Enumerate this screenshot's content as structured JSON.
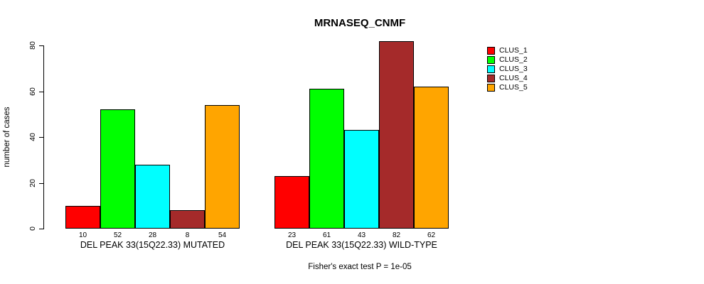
{
  "chart_data": {
    "type": "bar",
    "title": "MRNASEQ_CNMF",
    "ylabel": "number of cases",
    "ylim": [
      0,
      80
    ],
    "yticks": [
      "0",
      "20",
      "40",
      "60",
      "80"
    ],
    "grid": false,
    "legend_position": "right-outside",
    "categories": [
      "DEL PEAK 33(15Q22.33) MUTATED",
      "DEL PEAK 33(15Q22.33) WILD-TYPE"
    ],
    "series": [
      {
        "name": "CLUS_1",
        "color": "#ff0000",
        "values": [
          10,
          23
        ]
      },
      {
        "name": "CLUS_2",
        "color": "#00ff00",
        "values": [
          52,
          61
        ]
      },
      {
        "name": "CLUS_3",
        "color": "#00ffff",
        "values": [
          28,
          43
        ]
      },
      {
        "name": "CLUS_4",
        "color": "#a52a2a",
        "values": [
          8,
          82
        ]
      },
      {
        "name": "CLUS_5",
        "color": "#ffa500",
        "values": [
          54,
          62
        ]
      }
    ],
    "value_labels_shown": true,
    "footnote": "Fisher's exact test P = 1e-05"
  },
  "colors": {
    "background": "#ffffff",
    "axis": "#000000",
    "text": "#000000"
  }
}
